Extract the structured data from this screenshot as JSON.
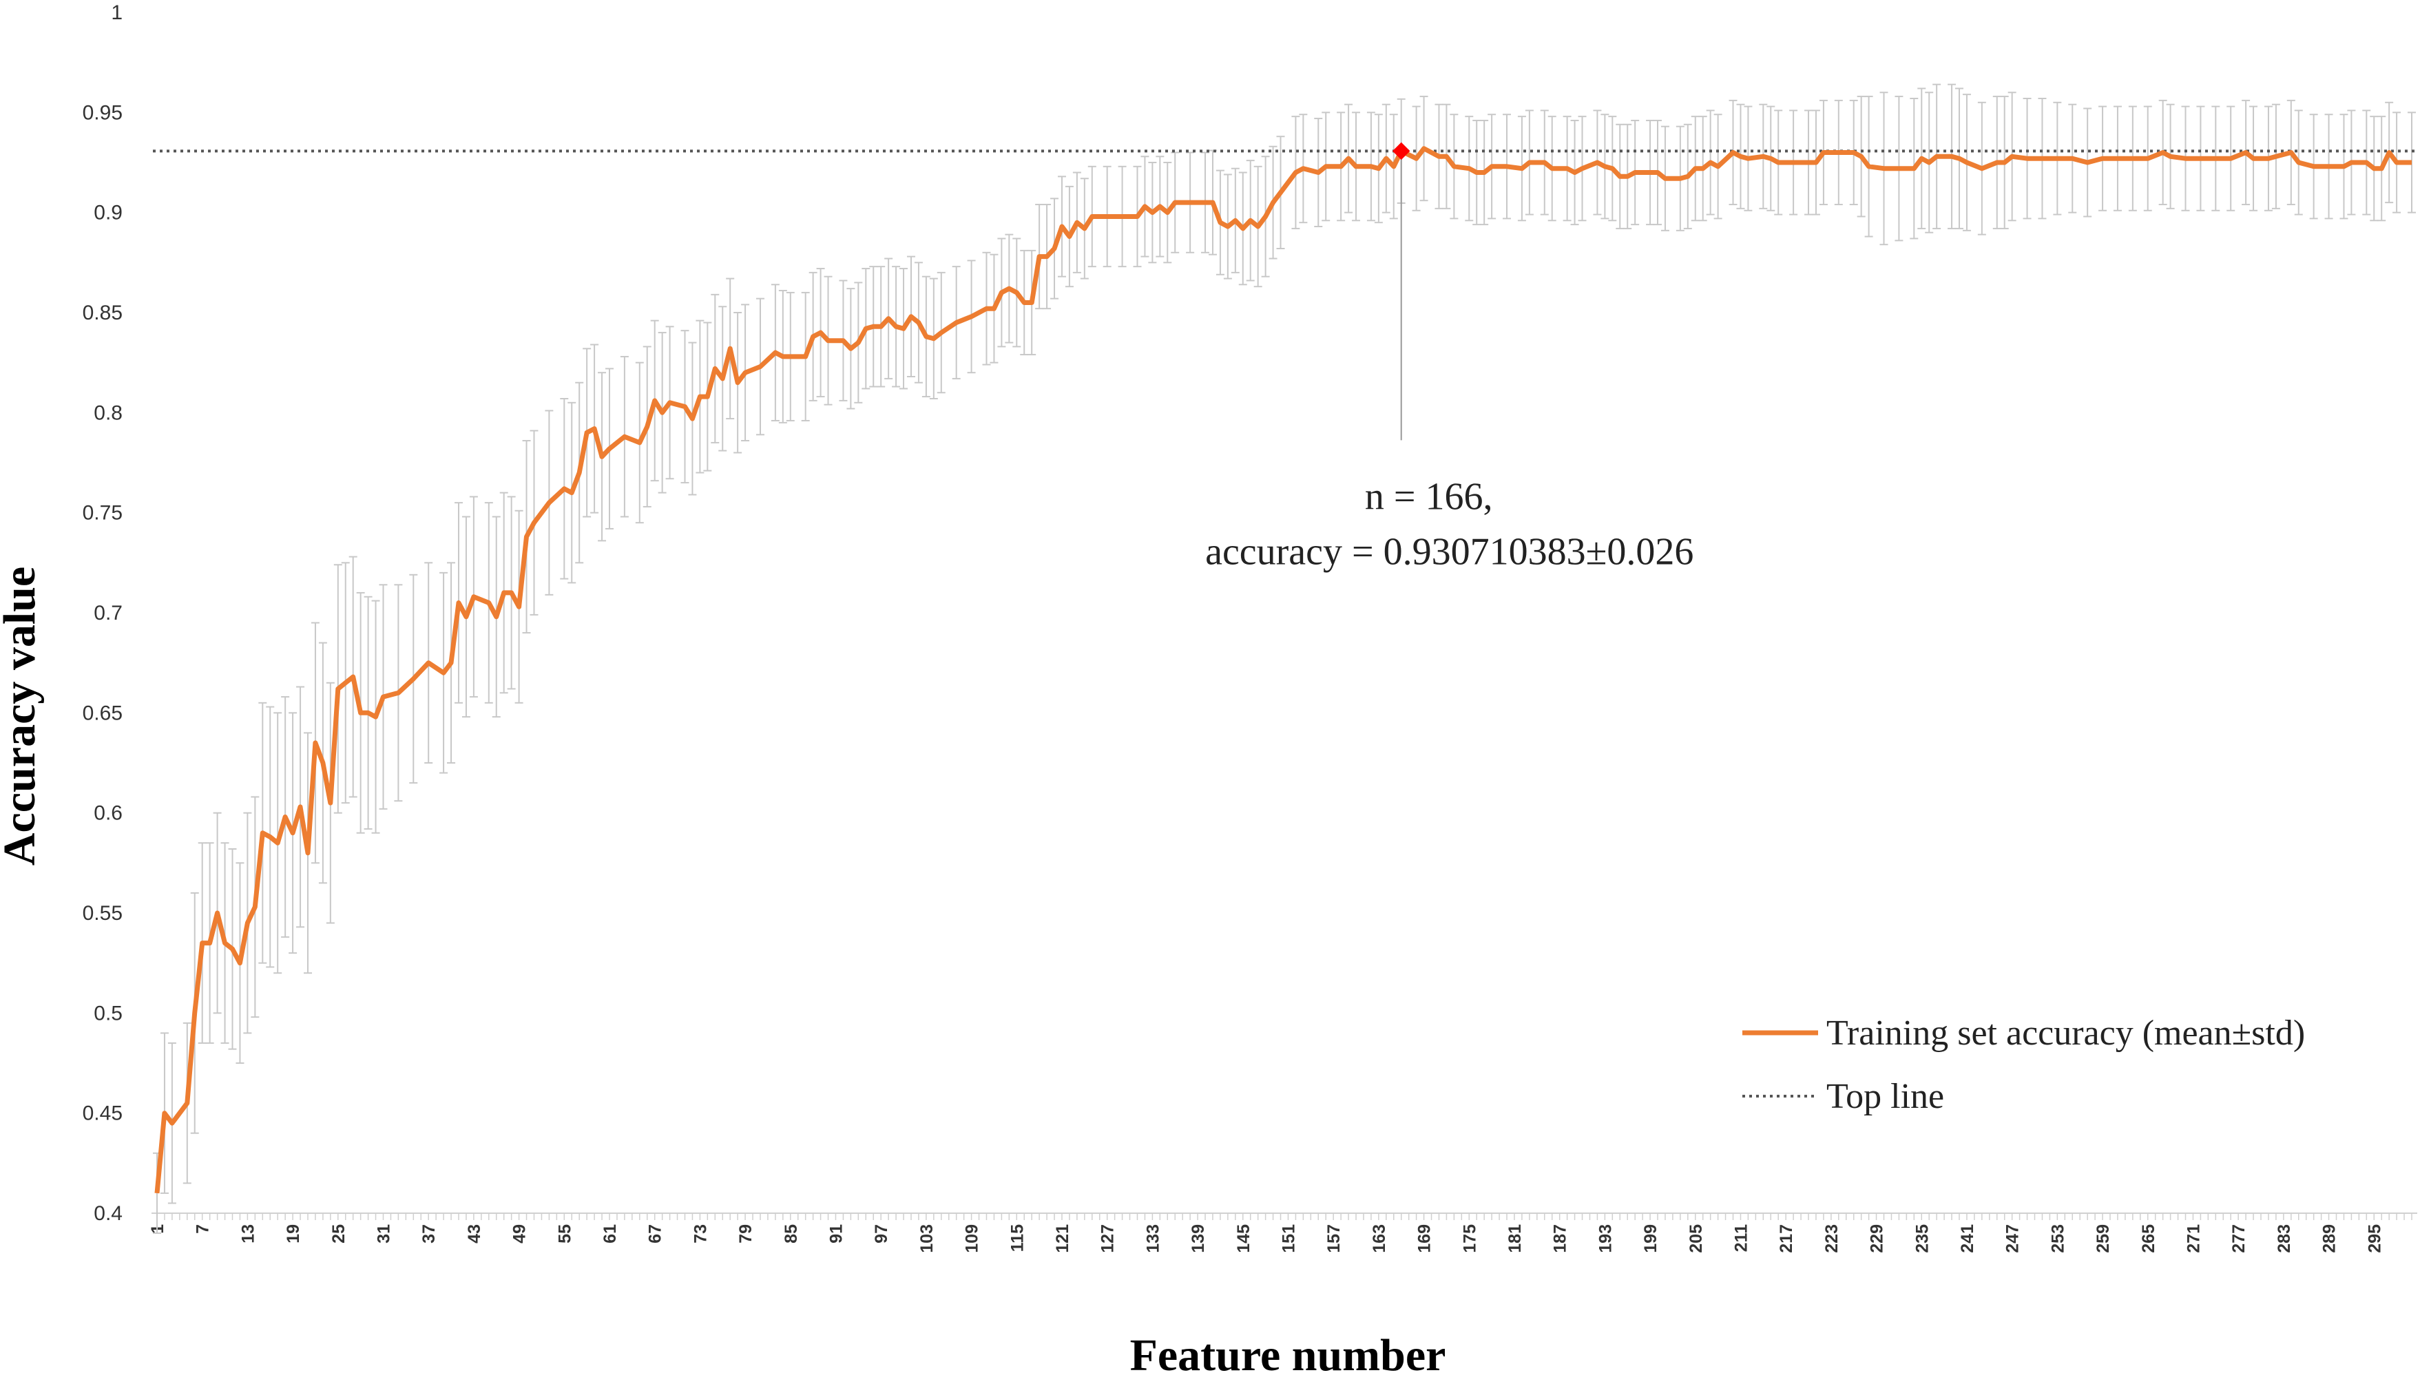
{
  "chart_data": {
    "type": "line",
    "xlabel": "Feature number",
    "ylabel": "Accuracy value",
    "ylim": [
      0.4,
      1
    ],
    "yticks": [
      "0.4",
      "0.45",
      "0.5",
      "0.55",
      "0.6",
      "0.65",
      "0.7",
      "0.75",
      "0.8",
      "0.85",
      "0.9",
      "0.95",
      "1"
    ],
    "xlim": [
      1,
      300
    ],
    "xticks": [
      "1",
      "7",
      "13",
      "19",
      "25",
      "31",
      "37",
      "43",
      "49",
      "55",
      "61",
      "67",
      "73",
      "79",
      "85",
      "91",
      "97",
      "103",
      "109",
      "115",
      "121",
      "127",
      "133",
      "139",
      "145",
      "151",
      "157",
      "163",
      "169",
      "175",
      "181",
      "187",
      "193",
      "199",
      "205",
      "211",
      "217",
      "223",
      "229",
      "235",
      "241",
      "247",
      "253",
      "259",
      "265",
      "271",
      "277",
      "283",
      "289",
      "295"
    ],
    "grid": false,
    "legend_position": "bottom-right",
    "series": [
      {
        "name": "Training set accuracy (mean±std)",
        "color": "#ED7D31",
        "error_bar_color": "#C8C8C8",
        "points": [
          [
            1,
            0.41,
            0.02
          ],
          [
            2,
            0.45,
            0.04
          ],
          [
            3,
            0.445,
            0.04
          ],
          [
            5,
            0.455,
            0.04
          ],
          [
            6,
            0.5,
            0.06
          ],
          [
            7,
            0.535,
            0.05
          ],
          [
            8,
            0.535,
            0.05
          ],
          [
            9,
            0.55,
            0.05
          ],
          [
            10,
            0.535,
            0.05
          ],
          [
            11,
            0.532,
            0.05
          ],
          [
            12,
            0.525,
            0.05
          ],
          [
            13,
            0.545,
            0.055
          ],
          [
            14,
            0.553,
            0.055
          ],
          [
            15,
            0.59,
            0.065
          ],
          [
            16,
            0.588,
            0.065
          ],
          [
            17,
            0.585,
            0.065
          ],
          [
            18,
            0.598,
            0.06
          ],
          [
            19,
            0.59,
            0.06
          ],
          [
            20,
            0.603,
            0.06
          ],
          [
            21,
            0.58,
            0.06
          ],
          [
            22,
            0.635,
            0.06
          ],
          [
            23,
            0.625,
            0.06
          ],
          [
            24,
            0.605,
            0.06
          ],
          [
            25,
            0.662,
            0.062
          ],
          [
            26,
            0.665,
            0.06
          ],
          [
            27,
            0.668,
            0.06
          ],
          [
            28,
            0.65,
            0.06
          ],
          [
            29,
            0.65,
            0.058
          ],
          [
            30,
            0.648,
            0.058
          ],
          [
            31,
            0.658,
            0.056
          ],
          [
            33,
            0.66,
            0.054
          ],
          [
            35,
            0.667,
            0.052
          ],
          [
            37,
            0.675,
            0.05
          ],
          [
            39,
            0.67,
            0.05
          ],
          [
            40,
            0.675,
            0.05
          ],
          [
            41,
            0.705,
            0.05
          ],
          [
            42,
            0.698,
            0.05
          ],
          [
            43,
            0.708,
            0.05
          ],
          [
            45,
            0.705,
            0.05
          ],
          [
            46,
            0.698,
            0.05
          ],
          [
            47,
            0.71,
            0.05
          ],
          [
            48,
            0.71,
            0.048
          ],
          [
            49,
            0.703,
            0.048
          ],
          [
            50,
            0.738,
            0.048
          ],
          [
            51,
            0.745,
            0.046
          ],
          [
            53,
            0.755,
            0.046
          ],
          [
            55,
            0.762,
            0.045
          ],
          [
            56,
            0.76,
            0.045
          ],
          [
            57,
            0.77,
            0.045
          ],
          [
            58,
            0.79,
            0.042
          ],
          [
            59,
            0.792,
            0.042
          ],
          [
            60,
            0.778,
            0.042
          ],
          [
            61,
            0.782,
            0.04
          ],
          [
            63,
            0.788,
            0.04
          ],
          [
            65,
            0.785,
            0.04
          ],
          [
            66,
            0.793,
            0.04
          ],
          [
            67,
            0.806,
            0.04
          ],
          [
            68,
            0.8,
            0.04
          ],
          [
            69,
            0.805,
            0.038
          ],
          [
            71,
            0.803,
            0.038
          ],
          [
            72,
            0.797,
            0.038
          ],
          [
            73,
            0.808,
            0.038
          ],
          [
            74,
            0.808,
            0.037
          ],
          [
            75,
            0.822,
            0.037
          ],
          [
            76,
            0.817,
            0.036
          ],
          [
            77,
            0.832,
            0.035
          ],
          [
            78,
            0.815,
            0.035
          ],
          [
            79,
            0.82,
            0.034
          ],
          [
            81,
            0.823,
            0.034
          ],
          [
            83,
            0.83,
            0.034
          ],
          [
            84,
            0.828,
            0.033
          ],
          [
            85,
            0.828,
            0.032
          ],
          [
            87,
            0.828,
            0.032
          ],
          [
            88,
            0.838,
            0.032
          ],
          [
            89,
            0.84,
            0.032
          ],
          [
            90,
            0.836,
            0.032
          ],
          [
            92,
            0.836,
            0.03
          ],
          [
            93,
            0.832,
            0.03
          ],
          [
            94,
            0.835,
            0.03
          ],
          [
            95,
            0.842,
            0.03
          ],
          [
            96,
            0.843,
            0.03
          ],
          [
            97,
            0.843,
            0.03
          ],
          [
            98,
            0.847,
            0.03
          ],
          [
            99,
            0.843,
            0.03
          ],
          [
            100,
            0.842,
            0.03
          ],
          [
            101,
            0.848,
            0.03
          ],
          [
            102,
            0.845,
            0.03
          ],
          [
            103,
            0.838,
            0.03
          ],
          [
            104,
            0.837,
            0.03
          ],
          [
            105,
            0.84,
            0.03
          ],
          [
            107,
            0.845,
            0.028
          ],
          [
            109,
            0.848,
            0.028
          ],
          [
            111,
            0.852,
            0.028
          ],
          [
            112,
            0.852,
            0.027
          ],
          [
            113,
            0.86,
            0.027
          ],
          [
            114,
            0.862,
            0.027
          ],
          [
            115,
            0.86,
            0.027
          ],
          [
            116,
            0.855,
            0.026
          ],
          [
            117,
            0.855,
            0.026
          ],
          [
            118,
            0.878,
            0.026
          ],
          [
            119,
            0.878,
            0.026
          ],
          [
            120,
            0.882,
            0.025
          ],
          [
            121,
            0.893,
            0.025
          ],
          [
            122,
            0.888,
            0.025
          ],
          [
            123,
            0.895,
            0.025
          ],
          [
            124,
            0.892,
            0.025
          ],
          [
            125,
            0.898,
            0.025
          ],
          [
            127,
            0.898,
            0.025
          ],
          [
            129,
            0.898,
            0.025
          ],
          [
            131,
            0.898,
            0.025
          ],
          [
            132,
            0.903,
            0.025
          ],
          [
            133,
            0.9,
            0.025
          ],
          [
            134,
            0.903,
            0.025
          ],
          [
            135,
            0.9,
            0.025
          ],
          [
            136,
            0.905,
            0.025
          ],
          [
            138,
            0.905,
            0.025
          ],
          [
            140,
            0.905,
            0.025
          ],
          [
            141,
            0.905,
            0.026
          ],
          [
            142,
            0.895,
            0.026
          ],
          [
            143,
            0.893,
            0.026
          ],
          [
            144,
            0.896,
            0.026
          ],
          [
            145,
            0.892,
            0.028
          ],
          [
            146,
            0.896,
            0.03
          ],
          [
            147,
            0.893,
            0.03
          ],
          [
            148,
            0.898,
            0.03
          ],
          [
            149,
            0.905,
            0.028
          ],
          [
            150,
            0.91,
            0.028
          ],
          [
            152,
            0.92,
            0.028
          ],
          [
            153,
            0.922,
            0.027
          ],
          [
            155,
            0.92,
            0.027
          ],
          [
            156,
            0.923,
            0.027
          ],
          [
            158,
            0.923,
            0.027
          ],
          [
            159,
            0.927,
            0.027
          ],
          [
            160,
            0.923,
            0.027
          ],
          [
            162,
            0.923,
            0.027
          ],
          [
            163,
            0.922,
            0.027
          ],
          [
            164,
            0.927,
            0.027
          ],
          [
            165,
            0.923,
            0.026
          ],
          [
            166,
            0.9307,
            0.026
          ],
          [
            168,
            0.927,
            0.026
          ],
          [
            169,
            0.932,
            0.026
          ],
          [
            171,
            0.928,
            0.026
          ],
          [
            172,
            0.928,
            0.026
          ],
          [
            173,
            0.923,
            0.026
          ],
          [
            175,
            0.922,
            0.026
          ],
          [
            176,
            0.92,
            0.026
          ],
          [
            177,
            0.92,
            0.026
          ],
          [
            178,
            0.923,
            0.026
          ],
          [
            180,
            0.923,
            0.026
          ],
          [
            182,
            0.922,
            0.026
          ],
          [
            183,
            0.925,
            0.026
          ],
          [
            185,
            0.925,
            0.026
          ],
          [
            186,
            0.922,
            0.026
          ],
          [
            188,
            0.922,
            0.026
          ],
          [
            189,
            0.92,
            0.026
          ],
          [
            190,
            0.922,
            0.026
          ],
          [
            192,
            0.925,
            0.026
          ],
          [
            193,
            0.923,
            0.026
          ],
          [
            194,
            0.922,
            0.026
          ],
          [
            195,
            0.918,
            0.026
          ],
          [
            196,
            0.918,
            0.026
          ],
          [
            197,
            0.92,
            0.026
          ],
          [
            199,
            0.92,
            0.026
          ],
          [
            200,
            0.92,
            0.026
          ],
          [
            201,
            0.917,
            0.026
          ],
          [
            203,
            0.917,
            0.026
          ],
          [
            204,
            0.918,
            0.026
          ],
          [
            205,
            0.922,
            0.026
          ],
          [
            206,
            0.922,
            0.026
          ],
          [
            207,
            0.925,
            0.026
          ],
          [
            208,
            0.923,
            0.026
          ],
          [
            210,
            0.93,
            0.026
          ],
          [
            211,
            0.928,
            0.026
          ],
          [
            212,
            0.927,
            0.026
          ],
          [
            214,
            0.928,
            0.026
          ],
          [
            215,
            0.927,
            0.026
          ],
          [
            216,
            0.925,
            0.026
          ],
          [
            218,
            0.925,
            0.026
          ],
          [
            220,
            0.925,
            0.026
          ],
          [
            221,
            0.925,
            0.026
          ],
          [
            222,
            0.93,
            0.026
          ],
          [
            224,
            0.93,
            0.026
          ],
          [
            226,
            0.93,
            0.026
          ],
          [
            227,
            0.928,
            0.03
          ],
          [
            228,
            0.923,
            0.035
          ],
          [
            230,
            0.922,
            0.038
          ],
          [
            232,
            0.922,
            0.036
          ],
          [
            234,
            0.922,
            0.035
          ],
          [
            235,
            0.927,
            0.035
          ],
          [
            236,
            0.925,
            0.035
          ],
          [
            237,
            0.928,
            0.036
          ],
          [
            239,
            0.928,
            0.036
          ],
          [
            240,
            0.927,
            0.035
          ],
          [
            241,
            0.925,
            0.034
          ],
          [
            243,
            0.922,
            0.033
          ],
          [
            245,
            0.925,
            0.033
          ],
          [
            246,
            0.925,
            0.033
          ],
          [
            247,
            0.928,
            0.032
          ],
          [
            249,
            0.927,
            0.03
          ],
          [
            251,
            0.927,
            0.03
          ],
          [
            253,
            0.927,
            0.028
          ],
          [
            255,
            0.927,
            0.027
          ],
          [
            257,
            0.925,
            0.027
          ],
          [
            259,
            0.927,
            0.026
          ],
          [
            261,
            0.927,
            0.026
          ],
          [
            263,
            0.927,
            0.026
          ],
          [
            265,
            0.927,
            0.026
          ],
          [
            267,
            0.93,
            0.026
          ],
          [
            268,
            0.928,
            0.026
          ],
          [
            270,
            0.927,
            0.026
          ],
          [
            272,
            0.927,
            0.026
          ],
          [
            274,
            0.927,
            0.026
          ],
          [
            276,
            0.927,
            0.026
          ],
          [
            278,
            0.93,
            0.026
          ],
          [
            279,
            0.927,
            0.026
          ],
          [
            281,
            0.927,
            0.026
          ],
          [
            282,
            0.928,
            0.026
          ],
          [
            284,
            0.93,
            0.026
          ],
          [
            285,
            0.925,
            0.026
          ],
          [
            287,
            0.923,
            0.026
          ],
          [
            289,
            0.923,
            0.026
          ],
          [
            291,
            0.923,
            0.026
          ],
          [
            292,
            0.925,
            0.026
          ],
          [
            294,
            0.925,
            0.026
          ],
          [
            295,
            0.922,
            0.026
          ],
          [
            296,
            0.922,
            0.026
          ],
          [
            297,
            0.93,
            0.025
          ],
          [
            298,
            0.925,
            0.025
          ],
          [
            300,
            0.925,
            0.025
          ]
        ]
      },
      {
        "name": "Top line",
        "color": "#555555",
        "y": 0.930710383
      }
    ],
    "highlight": {
      "x": 166,
      "y": 0.930710383,
      "marker_color": "#FF0000",
      "label_line1": "n = 166,",
      "label_line2": "accuracy = 0.930710383±0.026"
    }
  }
}
